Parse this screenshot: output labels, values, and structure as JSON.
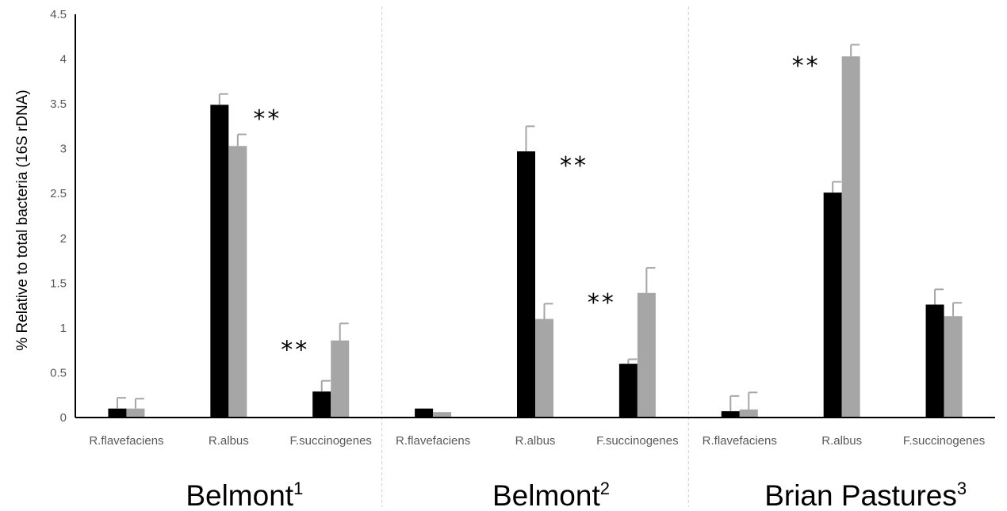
{
  "chart_data": {
    "type": "bar",
    "ylabel": "% Relative to total bacteria (16S rDNA)",
    "ylim": [
      0,
      4.5
    ],
    "yticks": [
      "0",
      "0.5",
      "1",
      "1.5",
      "2",
      "2.5",
      "3",
      "3.5",
      "4",
      "4.5"
    ],
    "grid": false,
    "legend": "none",
    "colors": {
      "series1": "#000000",
      "series2": "#a6a6a6",
      "error": "#a6a6a6",
      "axis": "#000000",
      "divider": "#d0d0d0"
    },
    "categories": [
      "R.flavefaciens",
      "R.albus",
      "F.succinogenes",
      "R.flavefaciens",
      "R.albus",
      "F.succinogenes",
      "R.flavefaciens",
      "R.albus",
      "F.succinogenes"
    ],
    "groups": [
      {
        "name": "Belmont",
        "sup": "1"
      },
      {
        "name": "Belmont",
        "sup": "2"
      },
      {
        "name": "Brian Pastures",
        "sup": "3"
      }
    ],
    "series": [
      {
        "values": [
          0.1,
          3.49,
          0.29,
          0.1,
          2.97,
          0.6,
          0.07,
          2.51,
          1.26
        ],
        "errors": [
          0.12,
          0.12,
          0.12,
          0.0,
          0.28,
          0.05,
          0.17,
          0.12,
          0.17
        ]
      },
      {
        "values": [
          0.1,
          3.03,
          0.86,
          0.06,
          1.1,
          1.39,
          0.09,
          4.03,
          1.13
        ],
        "errors": [
          0.11,
          0.13,
          0.19,
          0.0,
          0.17,
          0.28,
          0.19,
          0.13,
          0.15
        ]
      }
    ],
    "annotations": [
      {
        "text": "**",
        "category": 1,
        "value": 3.49,
        "side": "right"
      },
      {
        "text": "**",
        "category": 2,
        "value": 0.86,
        "side": "left"
      },
      {
        "text": "**",
        "category": 4,
        "value": 2.97,
        "side": "right"
      },
      {
        "text": "**",
        "category": 5,
        "value": 1.39,
        "side": "left"
      },
      {
        "text": "**",
        "category": 7,
        "value": 4.03,
        "side": "left"
      }
    ]
  }
}
